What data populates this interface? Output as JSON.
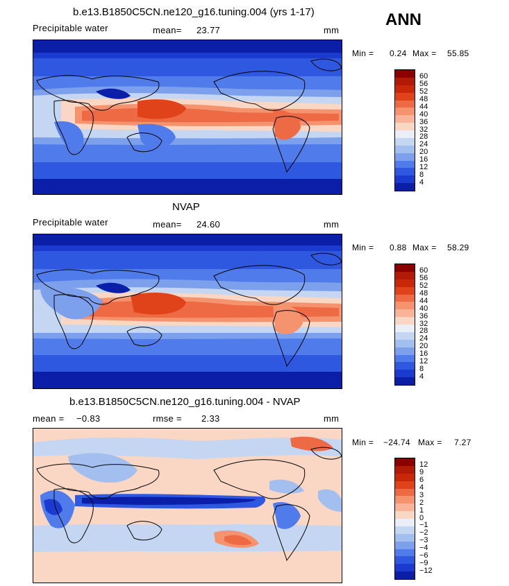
{
  "season": "ANN",
  "colorbars": {
    "precip": {
      "labels": [
        "60",
        "56",
        "52",
        "48",
        "44",
        "40",
        "36",
        "32",
        "28",
        "24",
        "20",
        "16",
        "12",
        "8",
        "4"
      ],
      "colors": [
        "#8b0000",
        "#b01a06",
        "#c8270a",
        "#e0421a",
        "#ed6a45",
        "#f4936e",
        "#f8b398",
        "#fad6c4",
        "#eaeef7",
        "#c5d6f3",
        "#a3bff0",
        "#7ca0ec",
        "#4f7cea",
        "#2f58e0",
        "#1a3ad0",
        "#0a1ea8"
      ]
    },
    "diff": {
      "labels": [
        "12",
        "9",
        "6",
        "4",
        "3",
        "2",
        "1",
        "0",
        "−1",
        "−2",
        "−3",
        "−4",
        "−6",
        "−9",
        "−12"
      ],
      "colors": [
        "#8b0000",
        "#b01a06",
        "#c8270a",
        "#e0421a",
        "#ed6a45",
        "#f4936e",
        "#f8b398",
        "#fad6c4",
        "#eaeef7",
        "#c5d6f3",
        "#a3bff0",
        "#7ca0ec",
        "#4f7cea",
        "#2f58e0",
        "#1a3ad0",
        "#0a1ea8"
      ]
    }
  },
  "panels": [
    {
      "title": "b.e13.B1850C5CN.ne120_g16.tuning.004 (yrs 1-17)",
      "left_label": "Precipitable water",
      "mean_label": "mean=",
      "mean_value": "23.77",
      "units": "mm",
      "min_label": "Min =",
      "min_value": "0.24",
      "max_label": "Max =",
      "max_value": "55.85"
    },
    {
      "title": "NVAP",
      "left_label": "Precipitable water",
      "mean_label": "mean=",
      "mean_value": "24.60",
      "units": "mm",
      "min_label": "Min =",
      "min_value": "0.88",
      "max_label": "Max =",
      "max_value": "58.29"
    },
    {
      "title": "b.e13.B1850C5CN.ne120_g16.tuning.004 - NVAP",
      "left_label": "mean =",
      "mean_label": "",
      "mean_value": "−0.83",
      "rmse_label": "rmse =",
      "rmse_value": "2.33",
      "units": "mm",
      "min_label": "Min =",
      "min_value": "−24.74",
      "max_label": "Max =",
      "max_value": "7.27"
    }
  ]
}
